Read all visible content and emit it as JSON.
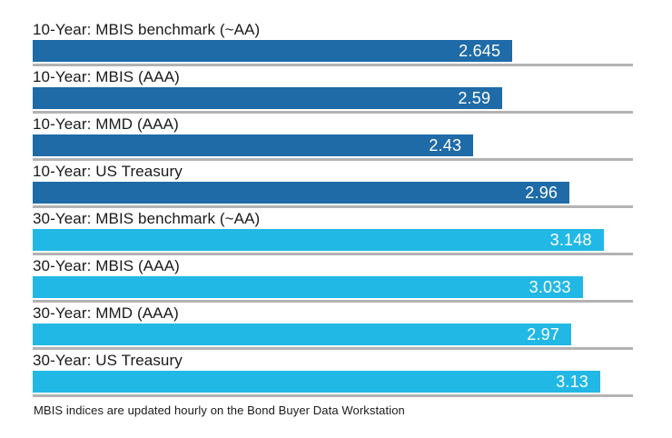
{
  "colors": {
    "dark_blue": "#1f6ba8",
    "light_blue": "#22b8e5",
    "baseline_gray": "#b3b3b3",
    "label_text": "#1a1a1a",
    "value_text": "#ffffff",
    "background": "#ffffff"
  },
  "footnote": "MBIS indices are updated hourly on the Bond Buyer Data Workstation",
  "chart_data": {
    "type": "bar",
    "orientation": "horizontal",
    "title": "",
    "xlabel": "",
    "ylabel": "",
    "xlim": [
      0,
      3.31
    ],
    "grid": false,
    "legend": false,
    "categories": [
      "10-Year: MBIS benchmark (~AA)",
      "10-Year: MBIS (AAA)",
      "10-Year: MMD (AAA)",
      "10-Year: US Treasury",
      "30-Year: MBIS benchmark (~AA)",
      "30-Year: MBIS (AAA)",
      "30-Year: MMD (AAA)",
      "30-Year: US Treasury"
    ],
    "values": [
      2.645,
      2.59,
      2.43,
      2.96,
      3.148,
      3.033,
      2.97,
      3.13
    ],
    "rows": [
      {
        "label": "10-Year: MBIS benchmark (~AA)",
        "value": 2.645,
        "display": "2.645",
        "color": "dark_blue"
      },
      {
        "label": "10-Year: MBIS (AAA)",
        "value": 2.59,
        "display": "2.59",
        "color": "dark_blue"
      },
      {
        "label": "10-Year: MMD (AAA)",
        "value": 2.43,
        "display": "2.43",
        "color": "dark_blue"
      },
      {
        "label": "10-Year: US Treasury",
        "value": 2.96,
        "display": "2.96",
        "color": "dark_blue"
      },
      {
        "label": "30-Year: MBIS benchmark (~AA)",
        "value": 3.148,
        "display": "3.148",
        "color": "light_blue"
      },
      {
        "label": "30-Year: MBIS (AAA)",
        "value": 3.033,
        "display": "3.033",
        "color": "light_blue"
      },
      {
        "label": "30-Year: MMD (AAA)",
        "value": 2.97,
        "display": "2.97",
        "color": "light_blue"
      },
      {
        "label": "30-Year: US Treasury",
        "value": 3.13,
        "display": "3.13",
        "color": "light_blue"
      }
    ]
  }
}
